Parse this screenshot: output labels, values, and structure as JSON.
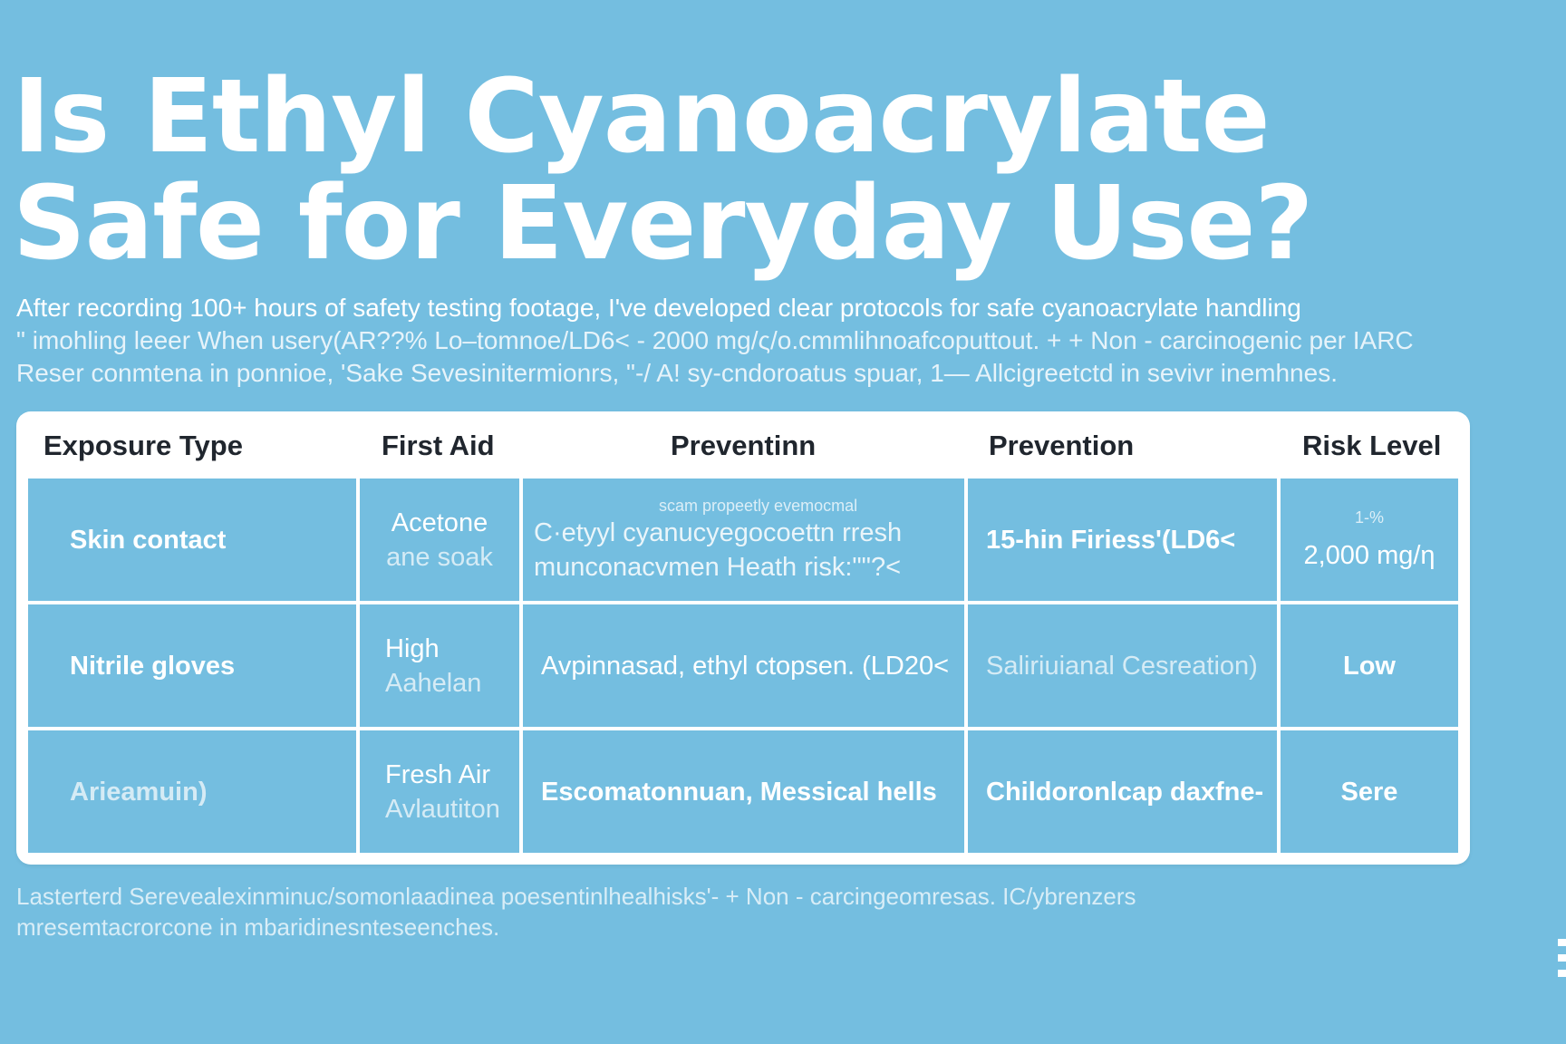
{
  "title": "Is Ethyl Cyanoacrylate Safe for Everyday Use?",
  "intro": [
    "After recording 100+ hours of safety testing footage, I've developed clear protocols for safe cyanoacrylate handling",
    "\" imohling leeer When usery(AR??% Lo–tomnoe/LD6< - 2000 mg/ς/o.cmmlihnoafcoputtout. + + Non - carcinogenic per IARC",
    "Reser conmtena in ponnioe, 'Sake Sevesinitermionrs, \"-/ A! sy-cndoroatus spuar, 1— Allcigreetctd in sevivr inemhnes."
  ],
  "table": {
    "headers": [
      "Exposure Type",
      "First Aid",
      "Preventinn",
      "Prevention",
      "Risk Level"
    ],
    "rows": [
      {
        "exposure": "Skin contact",
        "first_aid": [
          "Acetone",
          "ane soak"
        ],
        "prevention_a_note": "scam propeetly evemocmal",
        "prevention_a": [
          "C·etyyl cyanucyegocoettn rresh",
          "munconacvmen Heath risk:\"\"?<"
        ],
        "prevention_b": "15-hin Firiess'(LD6<",
        "risk_note": "1-%",
        "risk": "2,000 mg/η"
      },
      {
        "exposure": "Nitrile gloves",
        "first_aid": [
          "High",
          "Aahelan"
        ],
        "prevention_a_note": "",
        "prevention_a": [
          "Avpinnasad, ethyl ctopsen. (LD20<"
        ],
        "prevention_b": "Saliriuianal Cesreation)",
        "risk_note": "",
        "risk": "Low"
      },
      {
        "exposure": "Arieamuin)",
        "first_aid": [
          "Fresh Air",
          "Avlautiton"
        ],
        "prevention_a_note": "",
        "prevention_a": [
          "Escomatonnuan, Messical hells"
        ],
        "prevention_b": "Childoronlcap daxfne-",
        "risk_note": "",
        "risk": "Sere"
      }
    ]
  },
  "footnote": [
    "Lasterterd Serevealexinminuc/somonlaadinea poesentinlhealhisks'- + Non - carcingeomresas. IC/ybrenzers",
    "mresemtacrorcone in mbaridinesnteseenches."
  ],
  "colors": {
    "background": "#74BEE0",
    "card": "#FFFFFF",
    "header_text": "#20262E",
    "text": "#FFFFFF"
  }
}
